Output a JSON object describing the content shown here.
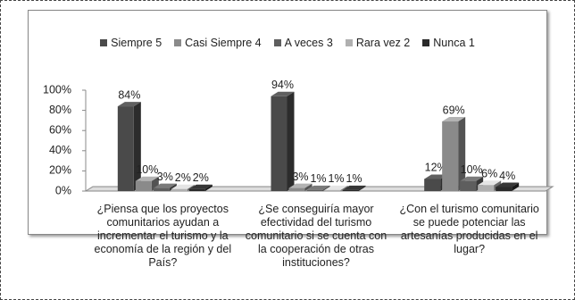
{
  "chart_data": {
    "type": "bar3d",
    "categories": [
      "¿Piensa que los proyectos comunitarios ayudan a incrementar el turismo y la economía de la región y del País?",
      "¿Se conseguiría mayor efectividad del turismo comunitario si se cuenta con la cooperación de otras instituciones?",
      "¿Con el turismo comunitario se puede potenciar las artesanías producidas en el lugar?"
    ],
    "series": [
      {
        "name": "Siempre 5",
        "color": "#4a4a4a",
        "values": [
          84,
          94,
          12
        ],
        "value_labels": [
          "84%",
          "94%",
          "12%"
        ]
      },
      {
        "name": "Casi Siempre 4",
        "color": "#8a8a8a",
        "values": [
          10,
          3,
          69
        ],
        "value_labels": [
          "10%",
          "3%",
          "69%"
        ]
      },
      {
        "name": "A veces 3",
        "color": "#5e5e5e",
        "values": [
          3,
          1,
          10
        ],
        "value_labels": [
          "3%",
          "1%",
          "10%"
        ]
      },
      {
        "name": "Rara vez 2",
        "color": "#b0b0b0",
        "values": [
          2,
          1,
          6
        ],
        "value_labels": [
          "2%",
          "1%",
          "6%"
        ]
      },
      {
        "name": "Nunca 1",
        "color": "#2a2a2a",
        "values": [
          2,
          1,
          4
        ],
        "value_labels": [
          "2%",
          "1%",
          "4%"
        ]
      }
    ],
    "ylim": [
      0,
      100
    ],
    "yticks": [
      {
        "value": 0,
        "label": "0%"
      },
      {
        "value": 20,
        "label": "20%"
      },
      {
        "value": 40,
        "label": "40%"
      },
      {
        "value": 60,
        "label": "60%"
      },
      {
        "value": 80,
        "label": "80%"
      },
      {
        "value": 100,
        "label": "100%"
      }
    ],
    "legend": "top"
  }
}
